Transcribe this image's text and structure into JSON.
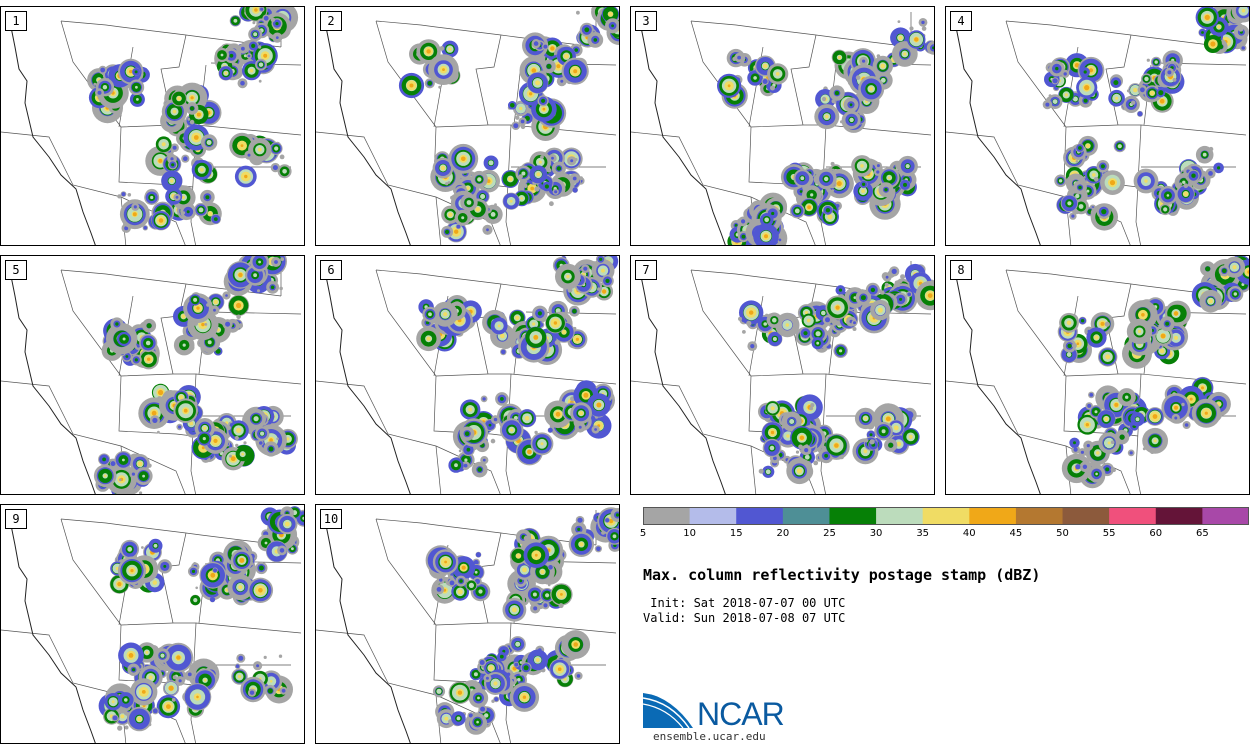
{
  "panels": [
    {
      "label": "1"
    },
    {
      "label": "2"
    },
    {
      "label": "3"
    },
    {
      "label": "4"
    },
    {
      "label": "5"
    },
    {
      "label": "6"
    },
    {
      "label": "7"
    },
    {
      "label": "8"
    },
    {
      "label": "9"
    },
    {
      "label": "10"
    }
  ],
  "colorbar": {
    "ticks": [
      "5",
      "10",
      "15",
      "20",
      "25",
      "30",
      "35",
      "40",
      "45",
      "50",
      "55",
      "60",
      "65"
    ],
    "colors": [
      "#a5a5a5",
      "#b4bcea",
      "#5157d2",
      "#4e8f96",
      "#068006",
      "#bcdcbc",
      "#f0dc64",
      "#f0a818",
      "#b47830",
      "#8c5a3c",
      "#f0507c",
      "#641438",
      "#a848a8"
    ]
  },
  "title": "Max. column reflectivity postage stamp (dBZ)",
  "init_text": " Init: Sat 2018-07-07 00 UTC",
  "valid_text": "Valid: Sun 2018-07-08 07 UTC",
  "logo": {
    "name": "NCAR",
    "url": "ensemble.ucar.edu"
  }
}
